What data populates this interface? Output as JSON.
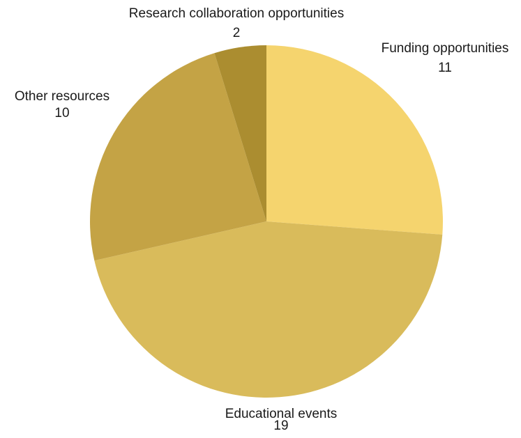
{
  "chart_data": {
    "type": "pie",
    "title": "",
    "slices": [
      {
        "label": "Funding opportunities",
        "value": 11,
        "color": "#f5d46e"
      },
      {
        "label": "Educational events",
        "value": 19,
        "color": "#d9bb5b"
      },
      {
        "label": "Other resources",
        "value": 10,
        "color": "#c4a345"
      },
      {
        "label": "Research collaboration opportunities",
        "value": 2,
        "color": "#ab8d30"
      }
    ],
    "start": "12 o'clock",
    "direction": "clockwise",
    "legend": "none"
  }
}
